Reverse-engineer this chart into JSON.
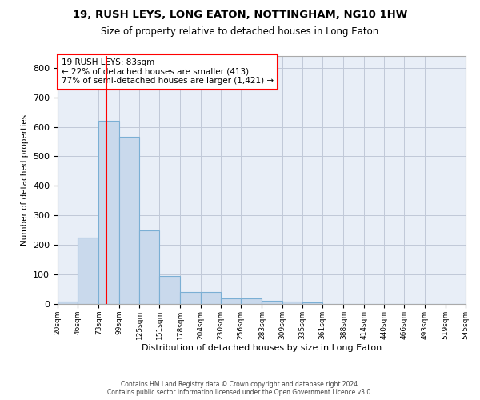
{
  "title1": "19, RUSH LEYS, LONG EATON, NOTTINGHAM, NG10 1HW",
  "title2": "Size of property relative to detached houses in Long Eaton",
  "xlabel": "Distribution of detached houses by size in Long Eaton",
  "ylabel": "Number of detached properties",
  "bar_color": "#c9d9ec",
  "bar_edge_color": "#7bafd4",
  "grid_color": "#c0c8d8",
  "background_color": "#e8eef7",
  "vline_color": "red",
  "vline_x": 83,
  "annotation_text": "19 RUSH LEYS: 83sqm\n← 22% of detached houses are smaller (413)\n77% of semi-detached houses are larger (1,421) →",
  "annotation_box_color": "white",
  "annotation_box_edge": "red",
  "footer1": "Contains HM Land Registry data © Crown copyright and database right 2024.",
  "footer2": "Contains public sector information licensed under the Open Government Licence v3.0.",
  "bin_edges": [
    20,
    46,
    73,
    99,
    125,
    151,
    178,
    204,
    230,
    256,
    283,
    309,
    335,
    361,
    388,
    414,
    440,
    466,
    493,
    519,
    545
  ],
  "bar_heights": [
    8,
    225,
    620,
    565,
    250,
    95,
    42,
    42,
    18,
    18,
    10,
    8,
    5,
    0,
    0,
    0,
    0,
    0,
    0,
    0
  ],
  "ylim": [
    0,
    840
  ],
  "yticks": [
    0,
    100,
    200,
    300,
    400,
    500,
    600,
    700,
    800
  ]
}
